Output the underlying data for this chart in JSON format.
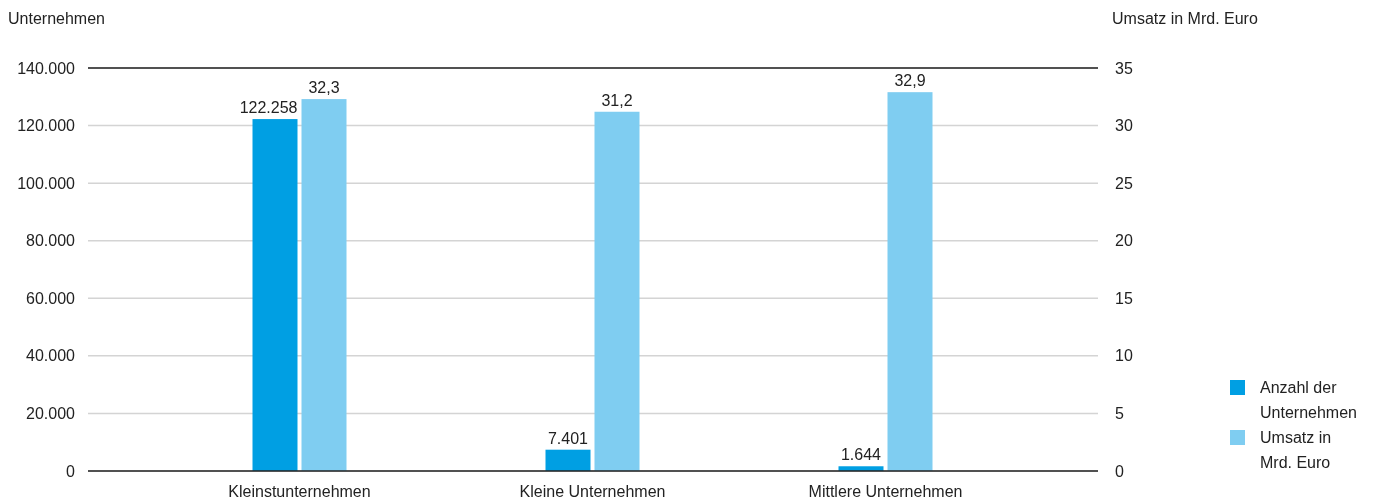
{
  "chart_data": {
    "type": "bar",
    "ylabel": "Unternehmen",
    "y2label": "Umsatz in Mrd. Euro",
    "categories": [
      "Kleinstunternehmen",
      "Kleine Unternehmen",
      "Mittlere Unternehmen"
    ],
    "series": [
      {
        "name": "Anzahl der Unternehmen",
        "color": "#009fe3",
        "values": [
          122258,
          7401,
          1644
        ],
        "value_labels": [
          "122.258",
          "7.401",
          "1.644"
        ]
      },
      {
        "name": "Umsatz in Mrd. Euro",
        "color": "#7fcdf1",
        "axis": "y2",
        "values": [
          32.3,
          31.2,
          32.9
        ],
        "value_labels": [
          "32,3",
          "31,2",
          "32,9"
        ]
      }
    ],
    "ylim": [
      0,
      140000
    ],
    "yticks": [
      0,
      {
        "value": 20000,
        "label": "20.000"
      },
      {
        "value": 40000,
        "label": "40.000"
      },
      {
        "value": 60000,
        "label": "60.000"
      },
      {
        "value": 80000,
        "label": "80.000"
      },
      {
        "value": 100000,
        "label": "100.000"
      },
      {
        "value": 120000,
        "label": "120.000"
      },
      {
        "value": 140000,
        "label": "140.000"
      }
    ],
    "y2lim": [
      0,
      35
    ],
    "y2ticks": [
      0,
      5,
      10,
      15,
      20,
      25,
      30,
      35
    ],
    "grid": "y",
    "legend": "right"
  }
}
